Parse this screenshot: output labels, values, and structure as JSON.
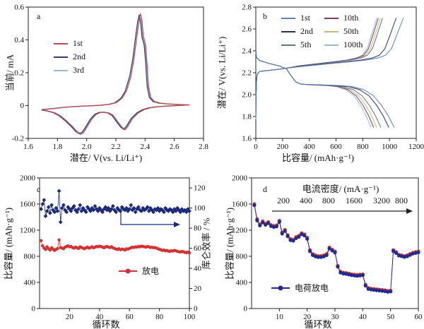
{
  "figure": {
    "background": "#ffffff",
    "frame_color": "#222222"
  },
  "chart_data": [
    {
      "id": "a",
      "type": "line",
      "panel_label": "a",
      "xlabel": "潜在/ V(vs. Li/Li⁺)",
      "ylabel": "当前/ mA",
      "xlim": [
        1.6,
        2.8
      ],
      "xticks": [
        1.6,
        1.8,
        2.0,
        2.2,
        2.4,
        2.6,
        2.8
      ],
      "xtick_labels": [
        "1.6",
        "1.8",
        "2.0",
        "2.2",
        "2.4",
        "2.6",
        "2.8"
      ],
      "ylim": [
        -0.2,
        0.6
      ],
      "yticks": [
        -0.2,
        0,
        0.2,
        0.4,
        0.6
      ],
      "ytick_labels": [
        "-0.2",
        "0",
        "0.2",
        "0.4",
        "0.6"
      ],
      "legend_position": "upper-left-inside",
      "grid": false,
      "series": [
        {
          "name": "1st",
          "color": "#c0484d",
          "dx": 0.003,
          "yscale": 1.0
        },
        {
          "name": "2nd",
          "color": "#2b3a6e",
          "dx": -0.006,
          "yscale": 0.985
        },
        {
          "name": "3rd",
          "color": "#9cb6c0",
          "dx": 0.001,
          "yscale": 0.96
        }
      ],
      "cv_loop_points": [
        [
          1.7,
          -0.025
        ],
        [
          1.78,
          -0.018
        ],
        [
          1.86,
          -0.01
        ],
        [
          1.94,
          -0.005
        ],
        [
          2.02,
          -0.002
        ],
        [
          2.1,
          0.002
        ],
        [
          2.16,
          0.008
        ],
        [
          2.2,
          0.018
        ],
        [
          2.24,
          0.045
        ],
        [
          2.27,
          0.09
        ],
        [
          2.3,
          0.18
        ],
        [
          2.32,
          0.28
        ],
        [
          2.34,
          0.42
        ],
        [
          2.355,
          0.52
        ],
        [
          2.365,
          0.56
        ],
        [
          2.375,
          0.52
        ],
        [
          2.385,
          0.42
        ],
        [
          2.395,
          0.39
        ],
        [
          2.4,
          0.37
        ],
        [
          2.41,
          0.26
        ],
        [
          2.42,
          0.12
        ],
        [
          2.435,
          0.05
        ],
        [
          2.46,
          0.025
        ],
        [
          2.5,
          0.015
        ],
        [
          2.56,
          0.01
        ],
        [
          2.64,
          0.006
        ],
        [
          2.7,
          0.004
        ],
        [
          2.62,
          0.0
        ],
        [
          2.54,
          -0.004
        ],
        [
          2.48,
          -0.008
        ],
        [
          2.43,
          -0.014
        ],
        [
          2.39,
          -0.025
        ],
        [
          2.35,
          -0.045
        ],
        [
          2.31,
          -0.08
        ],
        [
          2.28,
          -0.125
        ],
        [
          2.26,
          -0.148
        ],
        [
          2.24,
          -0.135
        ],
        [
          2.21,
          -0.1
        ],
        [
          2.18,
          -0.062
        ],
        [
          2.15,
          -0.046
        ],
        [
          2.12,
          -0.041
        ],
        [
          2.09,
          -0.043
        ],
        [
          2.06,
          -0.055
        ],
        [
          2.03,
          -0.085
        ],
        [
          2.0,
          -0.13
        ],
        [
          1.975,
          -0.165
        ],
        [
          1.955,
          -0.175
        ],
        [
          1.93,
          -0.16
        ],
        [
          1.9,
          -0.13
        ],
        [
          1.86,
          -0.095
        ],
        [
          1.82,
          -0.065
        ],
        [
          1.78,
          -0.045
        ],
        [
          1.74,
          -0.035
        ],
        [
          1.7,
          -0.028
        ]
      ],
      "anodic_peak": {
        "potential_V": 2.37,
        "current_mA": 0.56
      },
      "cathodic_peaks": [
        {
          "potential_V": 1.96,
          "current_mA": -0.18
        },
        {
          "potential_V": 2.26,
          "current_mA": -0.15
        }
      ]
    },
    {
      "id": "b",
      "type": "line",
      "panel_label": "b",
      "xlabel": "比容量/ (mAh·g⁻¹)",
      "ylabel": "潜在/ V(vs. Li/Li⁺)",
      "xlim": [
        0,
        1200
      ],
      "xticks": [
        0,
        200,
        400,
        600,
        800,
        1000,
        1200
      ],
      "xtick_labels": [
        "0",
        "200",
        "400",
        "600",
        "800",
        "1000",
        "1200"
      ],
      "ylim": [
        1.6,
        2.8
      ],
      "yticks": [
        1.6,
        1.8,
        2.0,
        2.2,
        2.4,
        2.6,
        2.8
      ],
      "ytick_labels": [
        "1.6",
        "1.8",
        "2.0",
        "2.2",
        "2.4",
        "2.6",
        "2.8"
      ],
      "legend_position": "upper-center-inside",
      "grid": false,
      "voltage_plateaus_V": {
        "charge": 2.25,
        "discharge_upper": 2.24,
        "discharge_lower": 2.08
      },
      "series": [
        {
          "name": "1st",
          "color": "#5b7fae",
          "charge_end_mAh_g": 1103,
          "discharge_end_mAh_g": 1035
        },
        {
          "name": "2nd",
          "color": "#22305e",
          "charge_end_mAh_g": 1050,
          "discharge_end_mAh_g": 995
        },
        {
          "name": "5th",
          "color": "#5f7181",
          "charge_end_mAh_g": 948,
          "discharge_end_mAh_g": 935
        },
        {
          "name": "10th",
          "color": "#7c3d5c",
          "charge_end_mAh_g": 916,
          "discharge_end_mAh_g": 882
        },
        {
          "name": "50th",
          "color": "#c9ba7c",
          "charge_end_mAh_g": 932,
          "discharge_end_mAh_g": 905
        },
        {
          "name": "100th",
          "color": "#9db9d2",
          "charge_end_mAh_g": 905,
          "discharge_end_mAh_g": 862
        }
      ]
    },
    {
      "id": "c",
      "type": "scatter",
      "panel_label": "c",
      "xlabel": "循环数",
      "ylabel_left": "比容量/ (mAh·g⁻¹)",
      "ylabel_right": "库仑效率 / %",
      "xlim": [
        0,
        100
      ],
      "xticks": [
        20,
        40,
        60,
        80,
        100
      ],
      "xtick_labels": [
        "20",
        "40",
        "60",
        "80",
        "100"
      ],
      "ylim_left": [
        0,
        2000
      ],
      "yticks_left": [
        0,
        400,
        800,
        1200,
        1600,
        2000
      ],
      "ytick_labels_left": [
        "0",
        "400",
        "800",
        "1200",
        "1600",
        "2000"
      ],
      "ylim_right": [
        0,
        130
      ],
      "yticks_right": [
        0,
        20,
        40,
        60,
        80,
        100,
        120
      ],
      "ytick_labels_right": [
        "0",
        "20",
        "40",
        "60",
        "80",
        "100",
        "120"
      ],
      "grid": false,
      "series": [
        {
          "name": "放电",
          "color": "#d53031",
          "axis": "left",
          "marker": "circle",
          "x_start": 1,
          "values": [
            1040,
            960,
            925,
            905,
            945,
            915,
            895,
            930,
            910,
            890,
            905,
            920,
            1050,
            935,
            925,
            915,
            940,
            950,
            960,
            945,
            950,
            935,
            925,
            940,
            930,
            920,
            945,
            935,
            925,
            915,
            930,
            940,
            925,
            935,
            945,
            930,
            940,
            950,
            945,
            955,
            950,
            940,
            930,
            945,
            950,
            940,
            935,
            945,
            930,
            920,
            910,
            905,
            915,
            900,
            910,
            905,
            895,
            915,
            910,
            920,
            930,
            940,
            935,
            945,
            940,
            950,
            945,
            955,
            950,
            945,
            940,
            950,
            945,
            935,
            940,
            930,
            935,
            925,
            915,
            905,
            900,
            890,
            895,
            885,
            890,
            880,
            875,
            885,
            880,
            890,
            885,
            875,
            870,
            865,
            875,
            870,
            860,
            855,
            865,
            850
          ]
        },
        {
          "name": "库仑效率",
          "color": "#1b2a78",
          "axis": "right",
          "marker": "diamond",
          "x_start": 1,
          "values": [
            99,
            104,
            108,
            92,
            97,
            101,
            95,
            103,
            98,
            96,
            100,
            97,
            117,
            86,
            100,
            103,
            98,
            96,
            101,
            99,
            97,
            100,
            102,
            98,
            96,
            99,
            103,
            97,
            100,
            98,
            96,
            101,
            99,
            97,
            100,
            98,
            102,
            99,
            97,
            100,
            98,
            96,
            99,
            101,
            98,
            100,
            97,
            99,
            102,
            98,
            96,
            100,
            98,
            97,
            101,
            99,
            98,
            100,
            97,
            99,
            103,
            98,
            100,
            96,
            99,
            101,
            98,
            97,
            100,
            98,
            99,
            101,
            97,
            100,
            98,
            96,
            99,
            98,
            100,
            97,
            99,
            98,
            96,
            100,
            98,
            97,
            99,
            98,
            96,
            99,
            97,
            100,
            98,
            96,
            99,
            97,
            98,
            96,
            99,
            97
          ]
        }
      ]
    },
    {
      "id": "d",
      "type": "scatter-line",
      "panel_label": "d",
      "xlabel": "循环数",
      "ylabel": "比容量/ (mAh·g⁻¹)",
      "annotation_title": "电流密度/ (mA·g⁻¹)",
      "rates": [
        "200",
        "400",
        "800",
        "1600",
        "3200",
        "800"
      ],
      "legend_label": "电荷放电",
      "xlim": [
        0,
        60
      ],
      "xticks": [
        10,
        20,
        30,
        40,
        50,
        60
      ],
      "xtick_labels": [
        "10",
        "20",
        "30",
        "40",
        "50",
        "60"
      ],
      "ylim": [
        0,
        2000
      ],
      "yticks": [
        0,
        400,
        800,
        1200,
        1600,
        2000
      ],
      "ytick_labels": [
        "0",
        "400",
        "800",
        "1200",
        "1600",
        "2000"
      ],
      "grid": false,
      "series": [
        {
          "name": "charge",
          "color": "#d0342c",
          "marker": "circle",
          "x_start": 1,
          "values": [
            1600,
            1370,
            1290,
            1335,
            1300,
            1325,
            1280,
            1265,
            1275,
            1345,
            1165,
            1205,
            1125,
            1065,
            1055,
            1095,
            1115,
            1155,
            1135,
            1085,
            895,
            835,
            815,
            805,
            805,
            815,
            835,
            935,
            905,
            875,
            655,
            565,
            550,
            545,
            535,
            525,
            520,
            515,
            520,
            525,
            365,
            315,
            305,
            300,
            295,
            290,
            285,
            280,
            270,
            275,
            895,
            865,
            825,
            815,
            805,
            815,
            835,
            855,
            865,
            875
          ]
        },
        {
          "name": "discharge",
          "color": "#232a8f",
          "marker": "circle",
          "x_start": 1,
          "values": [
            1582,
            1348,
            1272,
            1317,
            1282,
            1307,
            1262,
            1247,
            1257,
            1327,
            1147,
            1187,
            1107,
            1047,
            1037,
            1077,
            1097,
            1137,
            1117,
            1067,
            877,
            817,
            797,
            787,
            787,
            797,
            817,
            917,
            887,
            857,
            640,
            550,
            535,
            530,
            520,
            510,
            505,
            500,
            505,
            510,
            350,
            300,
            290,
            285,
            280,
            275,
            270,
            265,
            255,
            260,
            880,
            850,
            810,
            800,
            790,
            800,
            820,
            840,
            850,
            860
          ]
        }
      ]
    }
  ]
}
